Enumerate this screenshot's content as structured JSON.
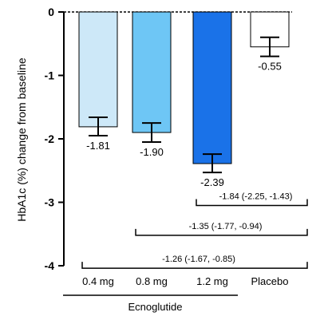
{
  "chart_data": {
    "type": "bar",
    "categories": [
      "0.4 mg",
      "0.8 mg",
      "1.2 mg",
      "Placebo"
    ],
    "values": [
      -1.81,
      -1.9,
      -2.39,
      -0.55
    ],
    "value_labels": [
      "-1.81",
      "-1.90",
      "-2.39",
      "-0.55"
    ],
    "error_low": [
      -1.95,
      -2.05,
      -2.53,
      -0.7
    ],
    "error_high": [
      -1.66,
      -1.75,
      -2.24,
      -0.4
    ],
    "ylabel": "HbA1c (%) change from baseline",
    "group_label": "Ecnoglutide",
    "group_categories": [
      "0.4 mg",
      "0.8 mg",
      "1.2 mg"
    ],
    "ylim": [
      -4,
      0
    ],
    "yticks": [
      0,
      -1,
      -2,
      -3,
      -4
    ],
    "ytick_labels": [
      "0",
      "-1",
      "-2",
      "-3",
      "-4"
    ],
    "grid": false,
    "colors": [
      "#cde8f8",
      "#6ec6f5",
      "#1a72e8",
      "#ffffff"
    ],
    "comparisons": [
      {
        "from": "1.2 mg",
        "to": "Placebo",
        "y": -3.05,
        "label": "-1.84 (-2.25, -1.43)"
      },
      {
        "from": "0.8 mg",
        "to": "Placebo",
        "y": -3.52,
        "label": "-1.35 (-1.77, -0.94)"
      },
      {
        "from": "0.4 mg",
        "to": "Placebo",
        "y": -4.04,
        "label": "-1.26 (-1.67, -0.85)"
      }
    ]
  }
}
